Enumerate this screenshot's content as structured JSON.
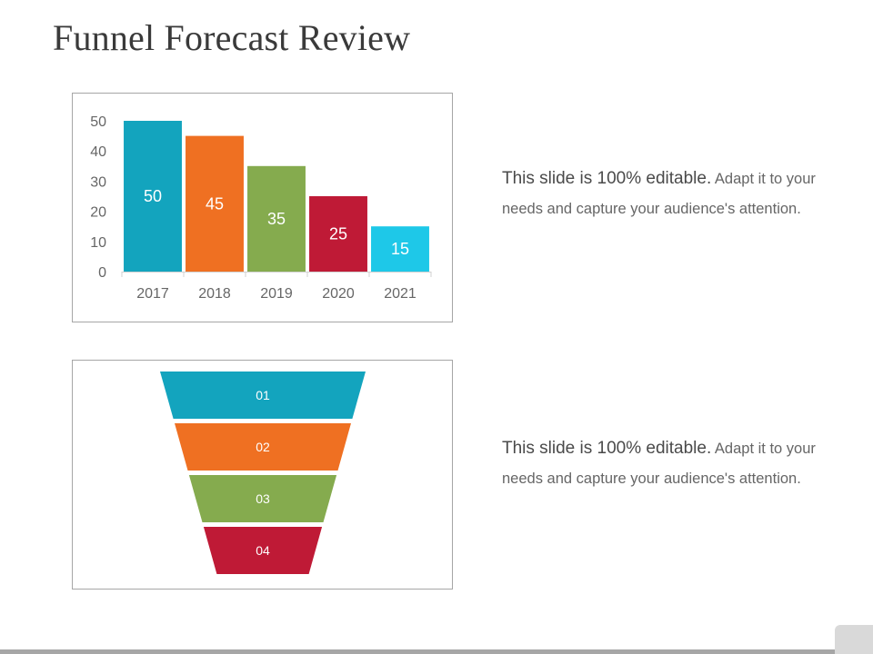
{
  "slide": {
    "title": "Funnel Forecast Review"
  },
  "notes": [
    {
      "lead": "This slide is 100% editable.",
      "body": " Adapt it to your needs and capture your audience's attention."
    },
    {
      "lead": "This slide is 100% editable.",
      "body": " Adapt it to your needs and capture your audience's attention."
    }
  ],
  "chart_data": [
    {
      "type": "bar",
      "categories": [
        "2017",
        "2018",
        "2019",
        "2020",
        "2021"
      ],
      "values": [
        50,
        45,
        35,
        25,
        15
      ],
      "data_labels": [
        "50",
        "45",
        "35",
        "25",
        "15"
      ],
      "colors": [
        "#13a4be",
        "#ef7022",
        "#85ab4e",
        "#bf1a36",
        "#1ec8e8"
      ],
      "y_ticks": [
        "0",
        "10",
        "20",
        "30",
        "40",
        "50"
      ],
      "ylim": [
        0,
        50
      ],
      "title": "",
      "xlabel": "",
      "ylabel": "",
      "grid": false,
      "legend": "none"
    }
  ],
  "funnel": {
    "stages": [
      {
        "label": "01",
        "color": "#13a4be"
      },
      {
        "label": "02",
        "color": "#ef7022"
      },
      {
        "label": "03",
        "color": "#85ab4e"
      },
      {
        "label": "04",
        "color": "#bf1a36"
      }
    ]
  }
}
